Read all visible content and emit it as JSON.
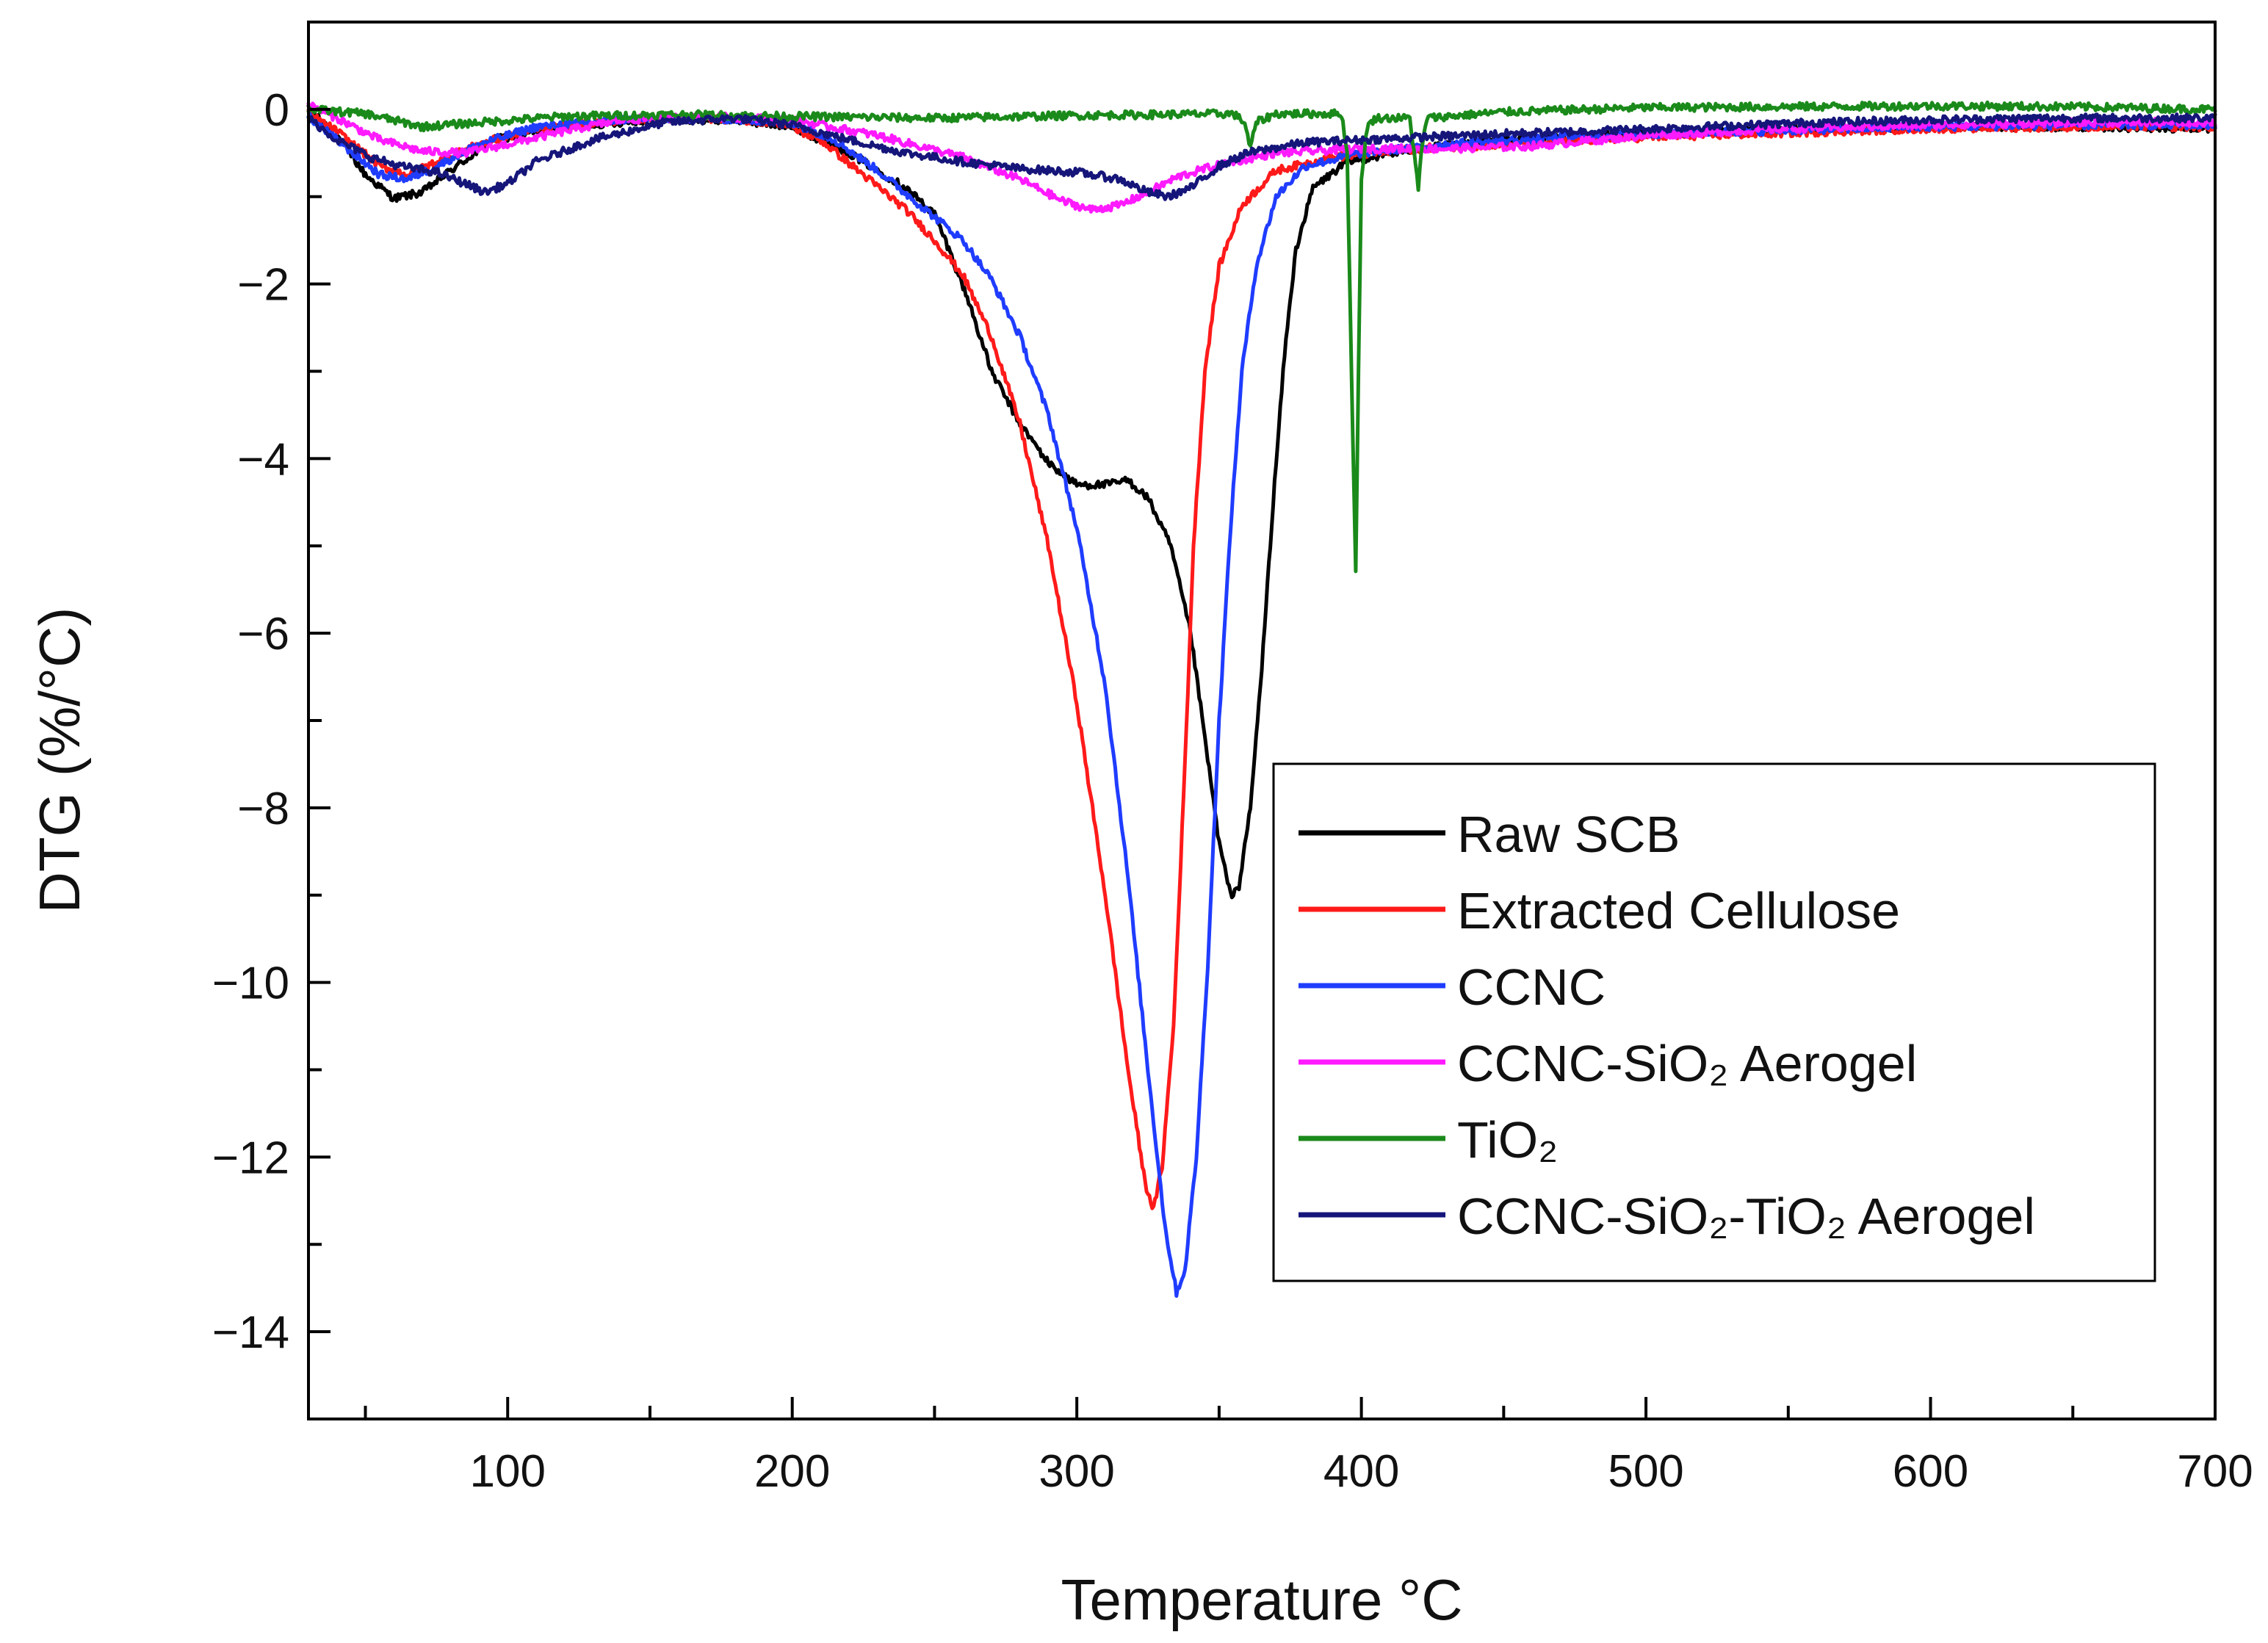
{
  "chart_data": {
    "type": "line",
    "title": "",
    "xlabel": "Temperature °C",
    "ylabel": "DTG (%/°C)",
    "xlim": [
      30,
      700
    ],
    "ylim": [
      -15,
      1
    ],
    "x_ticks": [
      100,
      200,
      300,
      400,
      500,
      600,
      700
    ],
    "y_ticks": [
      0,
      -2,
      -4,
      -6,
      -8,
      -10,
      -12,
      -14
    ],
    "x_tick_labels": [
      "100",
      "200",
      "300",
      "400",
      "500",
      "600",
      "700"
    ],
    "y_tick_labels": [
      "0",
      "−2",
      "−4",
      "−6",
      "−8",
      "−10",
      "−12",
      "−14"
    ],
    "grid": false,
    "legend_position": "right-center",
    "series": [
      {
        "name": "Raw SCB",
        "legend_text": "Raw SCB",
        "color": "#000000",
        "points": [
          [
            30,
            0
          ],
          [
            40,
            -0.3
          ],
          [
            50,
            -0.75
          ],
          [
            60,
            -1.02
          ],
          [
            70,
            -0.95
          ],
          [
            80,
            -0.7
          ],
          [
            95,
            -0.35
          ],
          [
            120,
            -0.2
          ],
          [
            150,
            -0.12
          ],
          [
            180,
            -0.12
          ],
          [
            200,
            -0.2
          ],
          [
            220,
            -0.5
          ],
          [
            240,
            -0.9
          ],
          [
            250,
            -1.2
          ],
          [
            255,
            -1.6
          ],
          [
            262,
            -2.2
          ],
          [
            270,
            -3.0
          ],
          [
            280,
            -3.6
          ],
          [
            290,
            -4.05
          ],
          [
            300,
            -4.3
          ],
          [
            310,
            -4.3
          ],
          [
            318,
            -4.25
          ],
          [
            325,
            -4.45
          ],
          [
            333,
            -5.0
          ],
          [
            340,
            -6.0
          ],
          [
            345,
            -7.2
          ],
          [
            350,
            -8.4
          ],
          [
            354,
            -9.0
          ],
          [
            357,
            -8.9
          ],
          [
            361,
            -8.0
          ],
          [
            365,
            -6.4
          ],
          [
            369,
            -4.5
          ],
          [
            373,
            -2.8
          ],
          [
            377,
            -1.6
          ],
          [
            383,
            -0.9
          ],
          [
            395,
            -0.6
          ],
          [
            420,
            -0.45
          ],
          [
            450,
            -0.35
          ],
          [
            500,
            -0.28
          ],
          [
            550,
            -0.22
          ],
          [
            600,
            -0.2
          ],
          [
            650,
            -0.2
          ],
          [
            700,
            -0.22
          ]
        ]
      },
      {
        "name": "Extracted Cellulose",
        "legend_text": "Extracted Cellulose",
        "color": "#ff1a1a",
        "points": [
          [
            30,
            -0.05
          ],
          [
            40,
            -0.25
          ],
          [
            55,
            -0.65
          ],
          [
            65,
            -0.75
          ],
          [
            75,
            -0.6
          ],
          [
            90,
            -0.4
          ],
          [
            110,
            -0.22
          ],
          [
            140,
            -0.12
          ],
          [
            170,
            -0.1
          ],
          [
            195,
            -0.15
          ],
          [
            210,
            -0.35
          ],
          [
            225,
            -0.75
          ],
          [
            240,
            -1.15
          ],
          [
            250,
            -1.5
          ],
          [
            260,
            -1.9
          ],
          [
            270,
            -2.6
          ],
          [
            280,
            -3.6
          ],
          [
            290,
            -5.0
          ],
          [
            300,
            -6.8
          ],
          [
            310,
            -9.0
          ],
          [
            318,
            -11.0
          ],
          [
            324,
            -12.3
          ],
          [
            327,
            -12.6
          ],
          [
            330,
            -12.1
          ],
          [
            334,
            -10.5
          ],
          [
            338,
            -7.5
          ],
          [
            341,
            -5.0
          ],
          [
            345,
            -3.0
          ],
          [
            350,
            -1.8
          ],
          [
            358,
            -1.1
          ],
          [
            370,
            -0.7
          ],
          [
            390,
            -0.55
          ],
          [
            420,
            -0.45
          ],
          [
            450,
            -0.4
          ],
          [
            500,
            -0.32
          ],
          [
            550,
            -0.27
          ],
          [
            600,
            -0.22
          ],
          [
            650,
            -0.2
          ],
          [
            700,
            -0.2
          ]
        ]
      },
      {
        "name": "CCNC",
        "legend_text": "CCNC",
        "color": "#1f3cff",
        "points": [
          [
            30,
            -0.08
          ],
          [
            40,
            -0.35
          ],
          [
            55,
            -0.75
          ],
          [
            65,
            -0.8
          ],
          [
            75,
            -0.65
          ],
          [
            90,
            -0.4
          ],
          [
            110,
            -0.2
          ],
          [
            140,
            -0.12
          ],
          [
            170,
            -0.1
          ],
          [
            200,
            -0.15
          ],
          [
            215,
            -0.35
          ],
          [
            230,
            -0.7
          ],
          [
            245,
            -1.1
          ],
          [
            260,
            -1.5
          ],
          [
            270,
            -1.95
          ],
          [
            280,
            -2.6
          ],
          [
            290,
            -3.5
          ],
          [
            300,
            -4.8
          ],
          [
            310,
            -6.6
          ],
          [
            318,
            -8.8
          ],
          [
            325,
            -11.0
          ],
          [
            331,
            -12.8
          ],
          [
            335,
            -13.55
          ],
          [
            338,
            -13.3
          ],
          [
            342,
            -12.0
          ],
          [
            346,
            -9.8
          ],
          [
            350,
            -7.0
          ],
          [
            354,
            -4.8
          ],
          [
            358,
            -3.0
          ],
          [
            363,
            -1.8
          ],
          [
            370,
            -1.0
          ],
          [
            380,
            -0.65
          ],
          [
            400,
            -0.5
          ],
          [
            430,
            -0.4
          ],
          [
            470,
            -0.32
          ],
          [
            500,
            -0.28
          ],
          [
            550,
            -0.24
          ],
          [
            600,
            -0.2
          ],
          [
            650,
            -0.18
          ],
          [
            700,
            -0.18
          ]
        ]
      },
      {
        "name": "CCNC-SiO2 Aerogel",
        "legend_text": "CCNC-SiO₂ Aerogel",
        "color": "#ff1aff",
        "points": [
          [
            30,
            0.05
          ],
          [
            40,
            -0.1
          ],
          [
            55,
            -0.35
          ],
          [
            70,
            -0.48
          ],
          [
            85,
            -0.5
          ],
          [
            100,
            -0.4
          ],
          [
            120,
            -0.25
          ],
          [
            140,
            -0.12
          ],
          [
            170,
            -0.08
          ],
          [
            200,
            -0.12
          ],
          [
            230,
            -0.3
          ],
          [
            260,
            -0.55
          ],
          [
            280,
            -0.8
          ],
          [
            295,
            -1.05
          ],
          [
            305,
            -1.15
          ],
          [
            315,
            -1.1
          ],
          [
            325,
            -0.95
          ],
          [
            335,
            -0.78
          ],
          [
            345,
            -0.68
          ],
          [
            355,
            -0.6
          ],
          [
            370,
            -0.5
          ],
          [
            400,
            -0.45
          ],
          [
            430,
            -0.45
          ],
          [
            460,
            -0.42
          ],
          [
            500,
            -0.3
          ],
          [
            550,
            -0.22
          ],
          [
            600,
            -0.18
          ],
          [
            650,
            -0.15
          ],
          [
            700,
            -0.15
          ]
        ]
      },
      {
        "name": "TiO2",
        "legend_text": "TiO₂",
        "color": "#1a8a1a",
        "points": [
          [
            30,
            0
          ],
          [
            50,
            -0.05
          ],
          [
            70,
            -0.2
          ],
          [
            90,
            -0.15
          ],
          [
            120,
            -0.08
          ],
          [
            160,
            -0.06
          ],
          [
            200,
            -0.08
          ],
          [
            250,
            -0.1
          ],
          [
            300,
            -0.07
          ],
          [
            355,
            -0.05
          ],
          [
            359,
            -0.15
          ],
          [
            361,
            -0.45
          ],
          [
            363,
            -0.15
          ],
          [
            370,
            -0.05
          ],
          [
            393,
            -0.05
          ],
          [
            395,
            -0.5
          ],
          [
            397,
            -3.8
          ],
          [
            398,
            -5.25
          ],
          [
            399,
            -3.0
          ],
          [
            400,
            -0.8
          ],
          [
            402,
            -0.2
          ],
          [
            405,
            -0.1
          ],
          [
            417,
            -0.1
          ],
          [
            419,
            -0.6
          ],
          [
            420,
            -0.95
          ],
          [
            421,
            -0.5
          ],
          [
            423,
            -0.1
          ],
          [
            450,
            -0.03
          ],
          [
            500,
            0.02
          ],
          [
            550,
            0.03
          ],
          [
            600,
            0.04
          ],
          [
            650,
            0.03
          ],
          [
            700,
            0
          ]
        ]
      },
      {
        "name": "CCNC-SiO2-TiO2 Aerogel",
        "legend_text": "CCNC-SiO₂-TiO₂ Aerogel",
        "color": "#15157a",
        "points": [
          [
            30,
            -0.1
          ],
          [
            40,
            -0.35
          ],
          [
            52,
            -0.55
          ],
          [
            62,
            -0.65
          ],
          [
            75,
            -0.72
          ],
          [
            85,
            -0.85
          ],
          [
            92,
            -0.95
          ],
          [
            100,
            -0.85
          ],
          [
            110,
            -0.6
          ],
          [
            130,
            -0.35
          ],
          [
            155,
            -0.15
          ],
          [
            180,
            -0.1
          ],
          [
            200,
            -0.18
          ],
          [
            220,
            -0.35
          ],
          [
            240,
            -0.5
          ],
          [
            260,
            -0.6
          ],
          [
            280,
            -0.68
          ],
          [
            300,
            -0.72
          ],
          [
            315,
            -0.8
          ],
          [
            325,
            -0.95
          ],
          [
            332,
            -1.0
          ],
          [
            340,
            -0.9
          ],
          [
            350,
            -0.65
          ],
          [
            360,
            -0.5
          ],
          [
            380,
            -0.38
          ],
          [
            400,
            -0.35
          ],
          [
            420,
            -0.32
          ],
          [
            450,
            -0.28
          ],
          [
            480,
            -0.25
          ],
          [
            520,
            -0.2
          ],
          [
            560,
            -0.15
          ],
          [
            600,
            -0.12
          ],
          [
            640,
            -0.1
          ],
          [
            680,
            -0.1
          ],
          [
            700,
            -0.1
          ]
        ]
      }
    ]
  }
}
